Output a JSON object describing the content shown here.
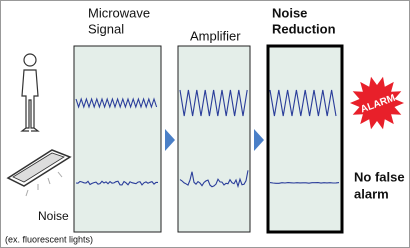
{
  "columns": [
    {
      "lines": [
        "Microwave",
        "Signal"
      ]
    },
    {
      "lines": [
        "Amplifier"
      ]
    },
    {
      "lines": [
        "Noise",
        "Reduction"
      ]
    }
  ],
  "alarm": "ALARM",
  "result": {
    "lines": [
      "No false",
      "alarm"
    ]
  },
  "noise_source": {
    "label": "Noise",
    "example": "(ex. fluorescent lights)"
  }
}
